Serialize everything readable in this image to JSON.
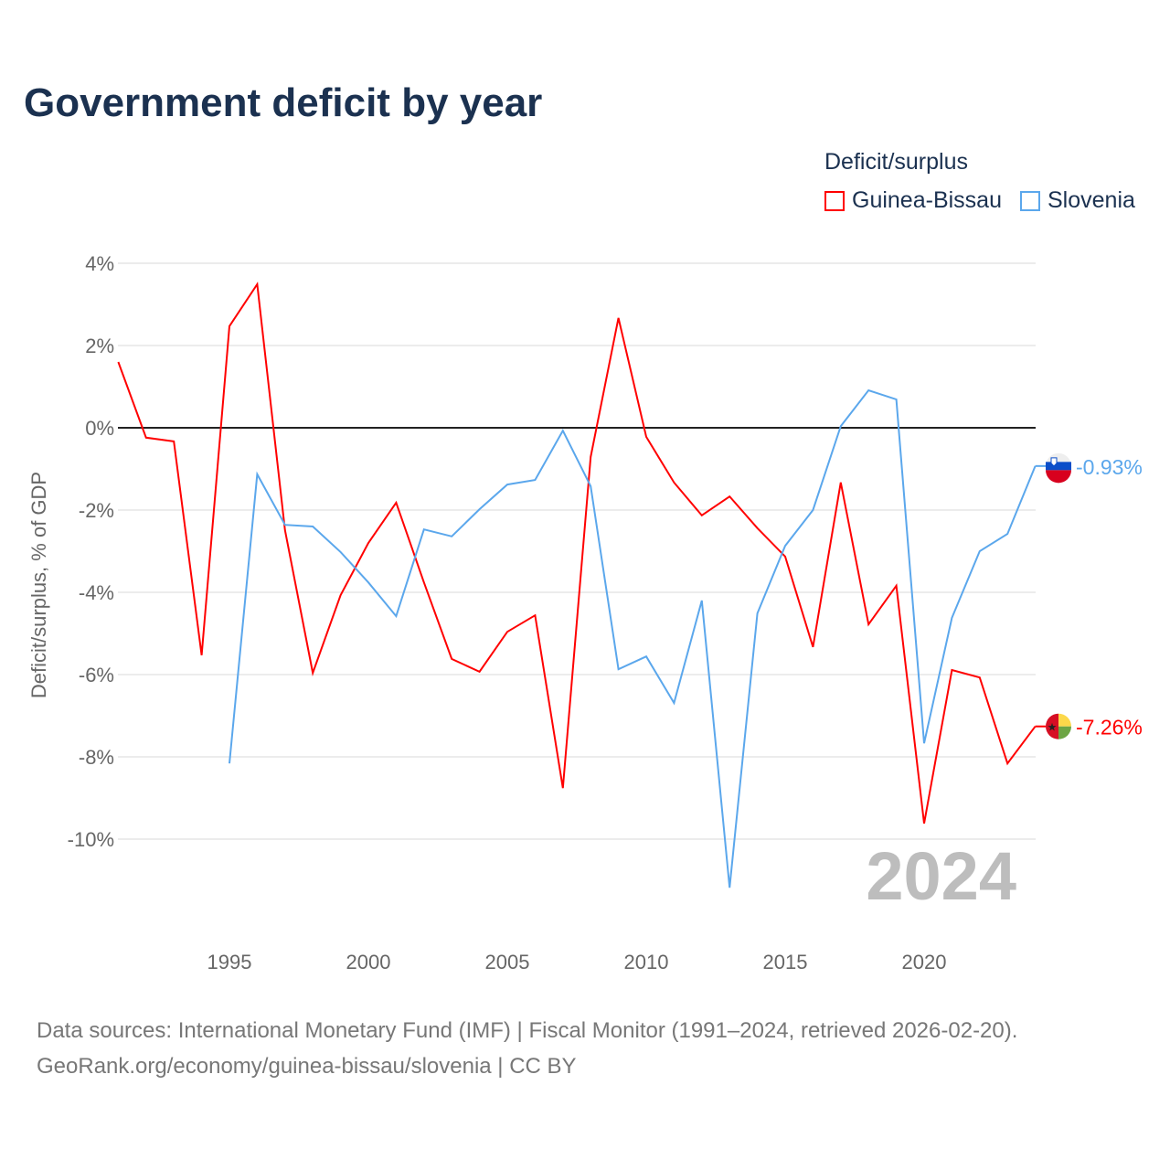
{
  "title": "Government deficit by year",
  "legend": {
    "title": "Deficit/surplus",
    "items": [
      "Guinea-Bissau",
      "Slovenia"
    ]
  },
  "year_label": "2024",
  "source_line1": "Data sources: International Monetary Fund (IMF) | Fiscal Monitor (1991–2024, retrieved 2026-02-20).",
  "source_line2": "GeoRank.org/economy/guinea-bissau/slovenia | CC BY",
  "chart_data": {
    "type": "line",
    "title": "Government deficit by year",
    "ylabel": "Deficit/surplus, % of GDP",
    "xlabel": "",
    "ylim": [
      -12,
      4
    ],
    "xlim": [
      1991,
      2024
    ],
    "yticks": [
      4,
      2,
      0,
      -2,
      -4,
      -6,
      -8,
      -10
    ],
    "ytick_labels": [
      "4%",
      "2%",
      "0%",
      "-2%",
      "-4%",
      "-6%",
      "-8%",
      "-10%"
    ],
    "xticks": [
      1995,
      2000,
      2005,
      2010,
      2015,
      2020
    ],
    "xtick_labels": [
      "1995",
      "2000",
      "2005",
      "2010",
      "2015",
      "2020"
    ],
    "grid": true,
    "legend_placement": "top-right",
    "series": [
      {
        "name": "Guinea-Bissau",
        "color": "#ff0000",
        "end_label": "-7.26%",
        "x": [
          1991,
          1992,
          1993,
          1994,
          1995,
          1996,
          1997,
          1998,
          1999,
          2000,
          2001,
          2002,
          2003,
          2004,
          2005,
          2006,
          2007,
          2008,
          2009,
          2010,
          2011,
          2012,
          2013,
          2014,
          2015,
          2016,
          2017,
          2018,
          2019,
          2020,
          2021,
          2022,
          2023,
          2024
        ],
        "values": [
          1.6,
          -0.24,
          -0.33,
          -5.53,
          2.47,
          3.49,
          -2.49,
          -5.96,
          -4.07,
          -2.8,
          -1.82,
          -3.76,
          -5.62,
          -5.93,
          -4.96,
          -4.56,
          -8.76,
          -0.71,
          2.67,
          -0.22,
          -1.33,
          -2.13,
          -1.67,
          -2.44,
          -3.13,
          -5.33,
          -1.33,
          -4.78,
          -3.84,
          -9.62,
          -5.89,
          -6.07,
          -8.16,
          -7.26
        ]
      },
      {
        "name": "Slovenia",
        "color": "#5ba7ec",
        "end_label": "-0.93%",
        "x": [
          1995,
          1996,
          1997,
          1998,
          1999,
          2000,
          2001,
          2002,
          2003,
          2004,
          2005,
          2006,
          2007,
          2008,
          2009,
          2010,
          2011,
          2012,
          2013,
          2014,
          2015,
          2016,
          2017,
          2018,
          2019,
          2020,
          2021,
          2022,
          2023,
          2024
        ],
        "values": [
          -8.16,
          -1.13,
          -2.36,
          -2.4,
          -3.02,
          -3.76,
          -4.58,
          -2.47,
          -2.64,
          -1.98,
          -1.38,
          -1.27,
          -0.07,
          -1.42,
          -5.87,
          -5.56,
          -6.69,
          -4.2,
          -11.18,
          -4.51,
          -2.87,
          -2.0,
          0.04,
          0.91,
          0.69,
          -7.67,
          -4.62,
          -3.0,
          -2.58,
          -0.93
        ]
      }
    ]
  }
}
